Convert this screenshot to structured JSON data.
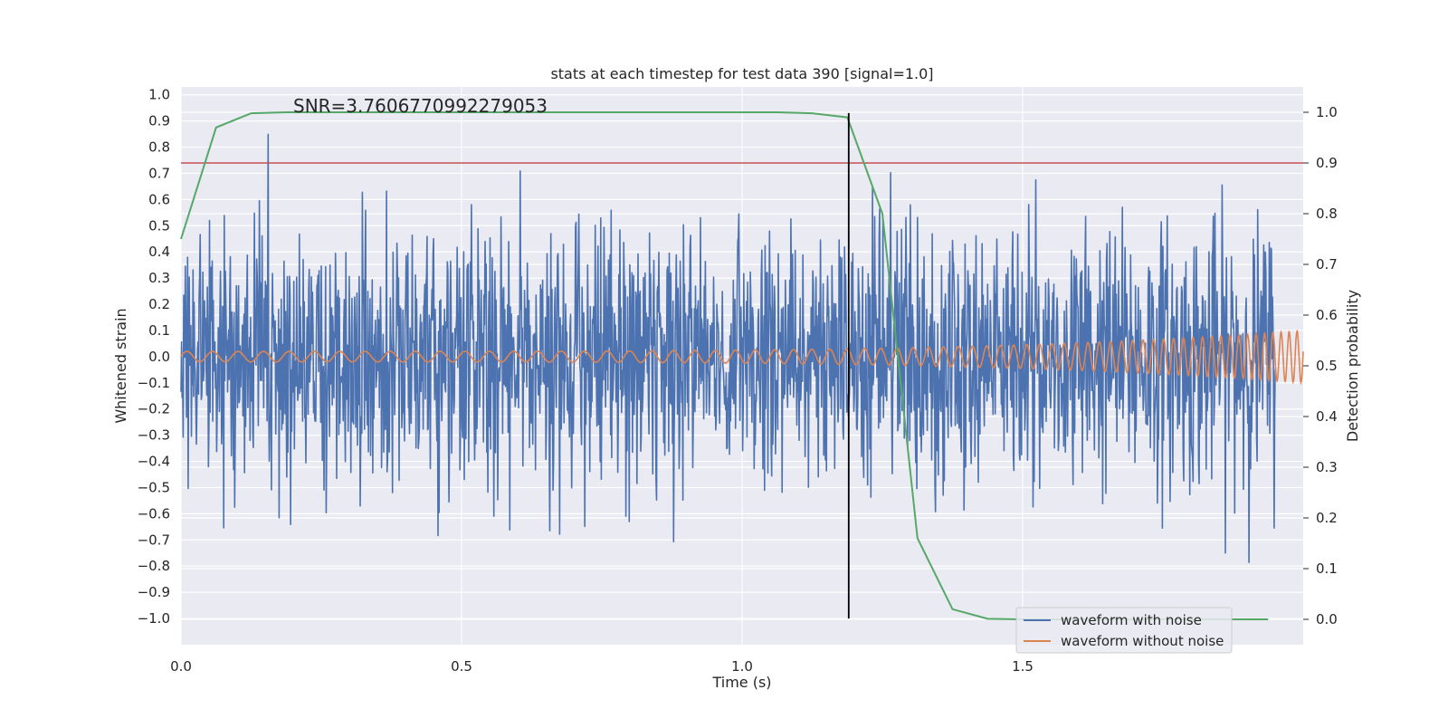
{
  "chart_data": {
    "type": "line",
    "title": "stats at each timestep for test data 390 [signal=1.0]",
    "annotation": "SNR=3.7606770992279053",
    "xlabel": "Time (s)",
    "ylabel": "Whitened strain",
    "ylabel_right": "Detection probability",
    "xlim": [
      0.0,
      2.0
    ],
    "ylim": [
      -1.1,
      1.03
    ],
    "ylim_right": [
      -0.05,
      1.05
    ],
    "x_ticks": [
      0.0,
      0.5,
      1.0,
      1.5
    ],
    "x_tick_labels": [
      "0.0",
      "0.5",
      "1.0",
      "1.5"
    ],
    "y_ticks": [
      1.0,
      0.9,
      0.8,
      0.7,
      0.6,
      0.5,
      0.4,
      0.3,
      0.2,
      0.1,
      0.0,
      -0.1,
      -0.2,
      -0.3,
      -0.4,
      -0.5,
      -0.6,
      -0.7,
      -0.8,
      -0.9,
      -1.0
    ],
    "y_tick_labels": [
      "1.0",
      "0.9",
      "0.8",
      "0.7",
      "0.6",
      "0.5",
      "0.4",
      "0.3",
      "0.2",
      "0.1",
      "0.0",
      "−0.1",
      "−0.2",
      "−0.3",
      "−0.4",
      "−0.5",
      "−0.6",
      "−0.7",
      "−0.8",
      "−0.9",
      "−1.0"
    ],
    "y_right_ticks": [
      1.0,
      0.9,
      0.8,
      0.7,
      0.6,
      0.5,
      0.4,
      0.3,
      0.2,
      0.1,
      0.0
    ],
    "y_right_tick_labels": [
      "1.0",
      "0.9",
      "0.8",
      "0.7",
      "0.6",
      "0.5",
      "0.4",
      "0.3",
      "0.2",
      "0.1",
      "0.0"
    ],
    "grid": true,
    "legend_position": "bottom-right",
    "series": [
      {
        "name": "waveform with noise",
        "color": "#4c72b0",
        "axis": "left",
        "kind": "noise",
        "sample_rate": 1024,
        "x_start": 0.0,
        "x_end": 1.95,
        "approx_std": 0.25,
        "range": [
          -1.0,
          0.93
        ]
      },
      {
        "name": "waveform without noise",
        "color": "#dd8452",
        "axis": "left",
        "kind": "chirp",
        "x_start": 0.0,
        "x_end": 2.0,
        "amplitude_start": 0.02,
        "amplitude_end": 0.1,
        "freq_start_hz": 22,
        "freq_end_hz": 72
      },
      {
        "name": "detection probability",
        "color": "#55a868",
        "axis": "right",
        "x": [
          0.0,
          0.0625,
          0.125,
          0.1875,
          0.25,
          0.3125,
          0.375,
          0.4375,
          0.5,
          0.5625,
          0.625,
          0.6875,
          0.75,
          0.8125,
          0.875,
          0.9375,
          1.0,
          1.0625,
          1.125,
          1.1875,
          1.25,
          1.3125,
          1.375,
          1.4375,
          1.5,
          1.5625,
          1.625,
          1.6875,
          1.75,
          1.8125,
          1.875,
          1.9375
        ],
        "y": [
          0.75,
          0.97,
          0.998,
          1.0,
          1.0,
          1.0,
          1.0,
          1.0,
          1.0,
          1.0,
          1.0,
          1.0,
          1.0,
          1.0,
          1.0,
          1.0,
          1.0,
          1.0,
          0.998,
          0.99,
          0.8,
          0.16,
          0.02,
          0.001,
          0.0,
          0.0,
          0.0,
          0.0,
          0.0,
          0.0,
          0.0,
          0.0
        ]
      }
    ],
    "threshold_line": {
      "color": "#c44e52",
      "axis": "right",
      "y": 0.9
    },
    "event_line": {
      "color": "#000000",
      "axis": "left",
      "x": 1.19,
      "y_range": [
        -1.0,
        0.93
      ]
    }
  }
}
